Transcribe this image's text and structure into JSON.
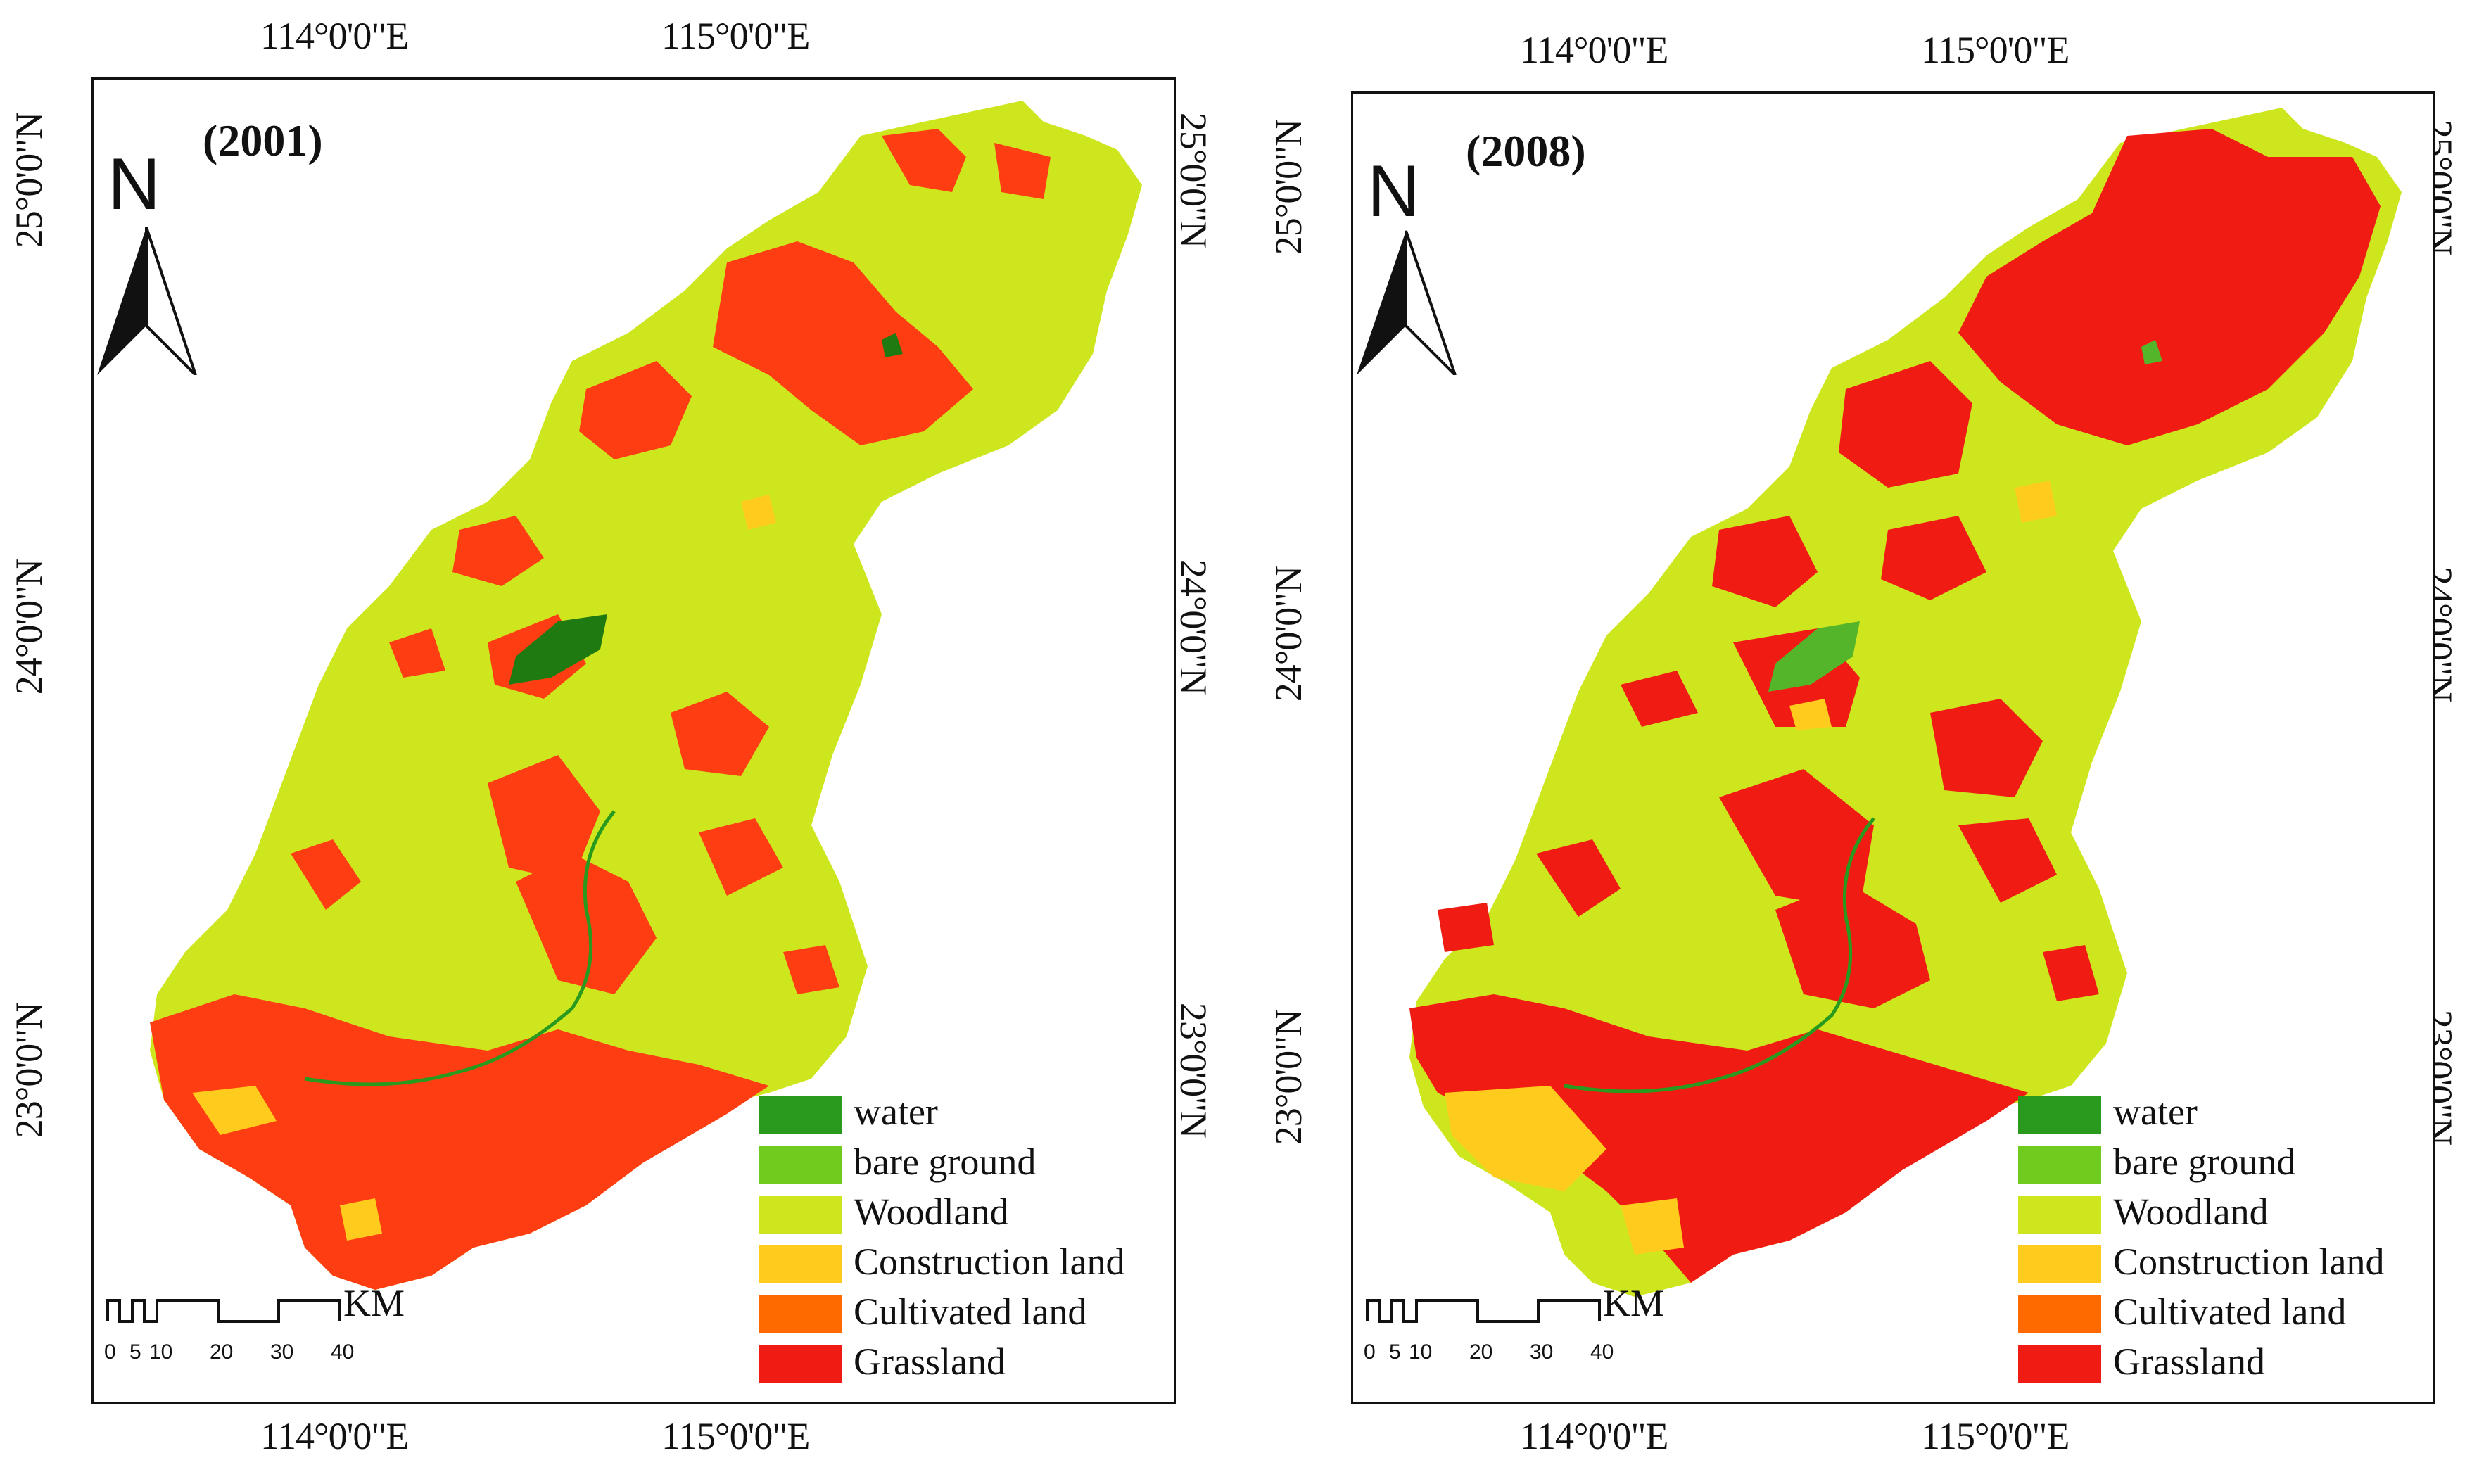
{
  "panels": [
    {
      "year_label": "(2001)",
      "top_lon_labels": [
        "114°0'0\"E",
        "115°0'0\"E"
      ],
      "bottom_lon_labels": [
        "114°0'0\"E",
        "115°0'0\"E"
      ],
      "lat_labels": [
        "25°0'0\"N",
        "24°0'0\"N",
        "23°0'0\"N"
      ],
      "north_label": "N",
      "scale_unit": "KM",
      "scale_ticks": [
        "0",
        "5",
        "10",
        "20",
        "30",
        "40"
      ],
      "legend": [
        {
          "label": "water",
          "color": "#2a9a1e"
        },
        {
          "label": "bare ground",
          "color": "#6fcc1e"
        },
        {
          "label": "Woodland",
          "color": "#cde61e"
        },
        {
          "label": "Construction land",
          "color": "#ffcc1e"
        },
        {
          "label": "Cultivated land",
          "color": "#ff6a00"
        },
        {
          "label": "Grassland",
          "color": "#f01c14"
        }
      ],
      "dominant_overlay": "#ff3d12"
    },
    {
      "year_label": "(2008)",
      "top_lon_labels": [
        "114°0'0\"E",
        "115°0'0\"E"
      ],
      "bottom_lon_labels": [
        "114°0'0\"E",
        "115°0'0\"E"
      ],
      "lat_labels": [
        "25°0'0\"N",
        "24°0'0\"N",
        "23°0'0\"N"
      ],
      "north_label": "N",
      "scale_unit": "KM",
      "scale_ticks": [
        "0",
        "5",
        "10",
        "20",
        "30",
        "40"
      ],
      "legend": [
        {
          "label": "water",
          "color": "#2a9a1e"
        },
        {
          "label": "bare ground",
          "color": "#6fcc1e"
        },
        {
          "label": "Woodland",
          "color": "#cde61e"
        },
        {
          "label": "Construction land",
          "color": "#ffcc1e"
        },
        {
          "label": "Cultivated land",
          "color": "#ff6a00"
        },
        {
          "label": "Grassland",
          "color": "#f01c14"
        }
      ],
      "dominant_overlay": "#f01c14"
    }
  ]
}
